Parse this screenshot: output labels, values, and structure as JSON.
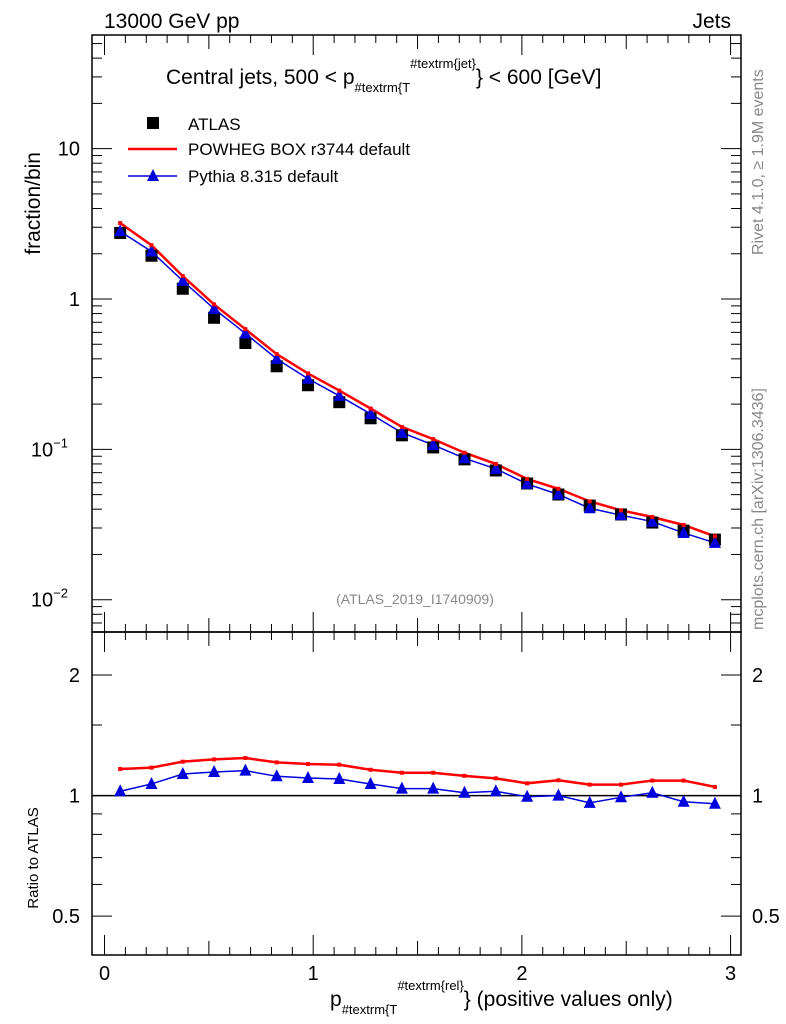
{
  "header": {
    "left": "13000 GeV pp",
    "right": "Jets"
  },
  "side_text": {
    "rivet": "Rivet 4.1.0, ≥ 1.9M events",
    "mcplots": "mcplots.cern.ch [arXiv:1306.3436]"
  },
  "analysis_label": "(ATLAS_2019_I1740909)",
  "title": {
    "main": "Central jets, 500 < p",
    "sub": "#textrm{T",
    "sup": "#textrm{jet}",
    "tail": "} < 600 [GeV]"
  },
  "xlabel": {
    "main": "p",
    "sub": "#textrm{T",
    "sup": "#textrm{rel}",
    "tail": "} (positive values only)"
  },
  "chart_data": [
    {
      "type": "scatter",
      "panel": "main",
      "ylabel": "fraction/bin",
      "yscale": "log",
      "ylim": [
        0.0061,
        57
      ],
      "xlim": [
        -0.06,
        3.05
      ],
      "yticks": [
        {
          "v": 0.01,
          "b": "10",
          "e": "−2"
        },
        {
          "v": 0.1,
          "b": "10",
          "e": "−1"
        },
        {
          "v": 1,
          "b": "1",
          "e": ""
        },
        {
          "v": 10,
          "b": "10",
          "e": ""
        }
      ],
      "x": [
        0.075,
        0.225,
        0.375,
        0.525,
        0.675,
        0.825,
        0.975,
        1.125,
        1.275,
        1.425,
        1.575,
        1.725,
        1.875,
        2.025,
        2.175,
        2.325,
        2.475,
        2.625,
        2.775,
        2.925
      ],
      "legend_position": "top-left",
      "series": [
        {
          "name": "ATLAS",
          "marker": "square",
          "color": "#000000",
          "values": [
            2.75,
            1.94,
            1.17,
            0.75,
            0.51,
            0.357,
            0.267,
            0.206,
            0.161,
            0.124,
            0.103,
            0.0858,
            0.0724,
            0.0593,
            0.0501,
            0.0423,
            0.0369,
            0.0326,
            0.0288,
            0.0251
          ]
        },
        {
          "name": "POWHEG BOX r3744 default",
          "marker": "line",
          "color": "#ff0000",
          "values": [
            3.2,
            2.28,
            1.42,
            0.92,
            0.63,
            0.43,
            0.32,
            0.246,
            0.187,
            0.141,
            0.117,
            0.095,
            0.08,
            0.0636,
            0.0547,
            0.0451,
            0.0393,
            0.0355,
            0.0314,
            0.0264
          ]
        },
        {
          "name": "Pythia 8.315 default",
          "marker": "triangle",
          "color": "#0000dd",
          "values": [
            2.82,
            2.07,
            1.32,
            0.86,
            0.59,
            0.4,
            0.295,
            0.227,
            0.172,
            0.129,
            0.107,
            0.0872,
            0.0742,
            0.0589,
            0.0501,
            0.0406,
            0.0365,
            0.0331,
            0.0278,
            0.0239
          ]
        }
      ]
    },
    {
      "type": "line",
      "panel": "ratio",
      "ylabel": "Ratio to ATLAS",
      "yscale": "log",
      "ylim": [
        0.4,
        2.56
      ],
      "xticks": [
        0,
        1,
        2,
        3
      ],
      "yticks": [
        0.5,
        1,
        2
      ],
      "series": [
        {
          "name": "POWHEG BOX r3744 default",
          "color": "#ff0000",
          "values": [
            1.165,
            1.174,
            1.215,
            1.231,
            1.241,
            1.21,
            1.199,
            1.194,
            1.16,
            1.14,
            1.14,
            1.12,
            1.104,
            1.073,
            1.092,
            1.065,
            1.065,
            1.09,
            1.09,
            1.051
          ]
        },
        {
          "name": "Pythia 8.315 default",
          "color": "#0000dd",
          "values": [
            1.025,
            1.069,
            1.132,
            1.145,
            1.154,
            1.117,
            1.106,
            1.1,
            1.069,
            1.041,
            1.041,
            1.016,
            1.025,
            0.993,
            1.0,
            0.959,
            0.99,
            1.016,
            0.965,
            0.954
          ]
        }
      ]
    }
  ]
}
